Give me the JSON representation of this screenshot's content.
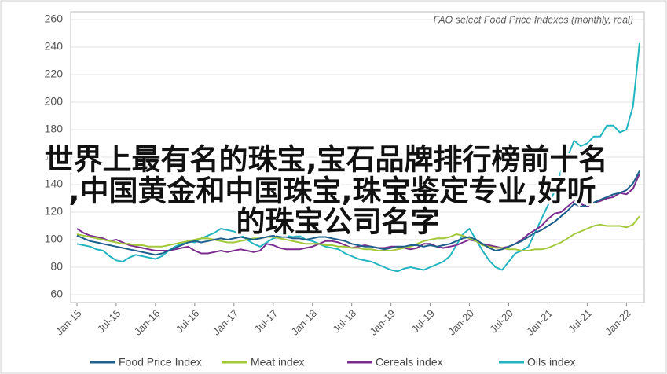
{
  "headline": [
    "世界上最有名的珠宝,宝石品牌排行榜前十名",
    ",中国黄金和中国珠宝,珠宝鉴定专业,好听",
    "的珠宝公司名字"
  ],
  "chart_data": {
    "type": "line",
    "title": "FAO select Food Price Indexes (monthly, real)",
    "categories": [
      "Jan-15",
      null,
      null,
      null,
      null,
      null,
      "Jul-15",
      null,
      null,
      null,
      null,
      null,
      "Jan-16",
      null,
      null,
      null,
      null,
      null,
      "Jul-16",
      null,
      null,
      null,
      null,
      null,
      "Jan-17",
      null,
      null,
      null,
      null,
      null,
      "Jul-17",
      null,
      null,
      null,
      null,
      null,
      "Jan-18",
      null,
      null,
      null,
      null,
      null,
      "Jul-18",
      null,
      null,
      null,
      null,
      null,
      "Jan-19",
      null,
      null,
      null,
      null,
      null,
      "Jul-19",
      null,
      null,
      null,
      null,
      null,
      "Jan-20",
      null,
      null,
      null,
      null,
      null,
      "Jul-20",
      null,
      null,
      null,
      null,
      null,
      "Jan-21",
      null,
      null,
      null,
      null,
      null,
      "Jul-21",
      null,
      null,
      null,
      null,
      null,
      "Jan-22",
      null,
      null
    ],
    "ylim": [
      60,
      260
    ],
    "yticks": [
      60,
      80,
      100,
      120,
      140,
      160,
      180,
      200,
      220,
      240,
      260
    ],
    "grid": true,
    "legend": "bottom",
    "series": [
      {
        "name": "Food Price Index",
        "color": "#1f5f8b",
        "values": [
          103,
          101,
          99,
          98,
          97,
          96,
          95,
          94,
          93,
          92,
          91,
          90,
          89,
          90,
          92,
          94,
          96,
          98,
          99,
          98,
          99,
          100,
          101,
          100,
          101,
          102,
          101,
          100,
          101,
          102,
          103,
          102,
          102,
          101,
          101,
          100,
          101,
          102,
          102,
          101,
          100,
          99,
          97,
          96,
          95,
          95,
          94,
          93,
          94,
          95,
          95,
          96,
          96,
          95,
          96,
          95,
          96,
          97,
          99,
          101,
          102,
          100,
          97,
          94,
          92,
          93,
          95,
          97,
          99,
          102,
          105,
          107,
          110,
          113,
          117,
          121,
          126,
          124,
          125,
          127,
          129,
          131,
          133,
          134,
          136,
          141,
          150
        ]
      },
      {
        "name": "Meat index",
        "color": "#a3c93a",
        "values": [
          104,
          103,
          102,
          101,
          100,
          99,
          98,
          97,
          97,
          96,
          96,
          95,
          95,
          95,
          96,
          97,
          98,
          99,
          100,
          101,
          101,
          100,
          99,
          98,
          98,
          99,
          100,
          101,
          101,
          102,
          102,
          101,
          100,
          99,
          98,
          97,
          97,
          97,
          96,
          96,
          95,
          95,
          94,
          94,
          93,
          93,
          92,
          92,
          92,
          93,
          94,
          95,
          97,
          99,
          100,
          101,
          101,
          102,
          104,
          103,
          101,
          99,
          96,
          95,
          94,
          94,
          93,
          93,
          92,
          92,
          93,
          93,
          94,
          96,
          98,
          101,
          104,
          106,
          108,
          110,
          111,
          110,
          110,
          110,
          109,
          111,
          117
        ]
      },
      {
        "name": "Cereals index",
        "color": "#7b2d8e",
        "values": [
          108,
          105,
          103,
          102,
          101,
          99,
          100,
          98,
          96,
          95,
          94,
          93,
          92,
          92,
          92,
          93,
          94,
          95,
          92,
          90,
          90,
          91,
          92,
          91,
          92,
          93,
          92,
          91,
          92,
          97,
          96,
          94,
          93,
          93,
          93,
          94,
          95,
          97,
          99,
          99,
          98,
          96,
          94,
          95,
          96,
          95,
          94,
          94,
          95,
          95,
          94,
          93,
          94,
          97,
          97,
          95,
          94,
          95,
          96,
          98,
          100,
          99,
          97,
          96,
          95,
          94,
          95,
          97,
          100,
          104,
          107,
          110,
          115,
          119,
          120,
          124,
          128,
          126,
          124,
          127,
          128,
          130,
          131,
          134,
          133,
          137,
          148
        ]
      },
      {
        "name": "Oils index",
        "color": "#22b5c0",
        "values": [
          97,
          96,
          95,
          93,
          92,
          88,
          85,
          84,
          87,
          89,
          88,
          87,
          86,
          88,
          92,
          95,
          97,
          99,
          98,
          101,
          103,
          105,
          108,
          107,
          106,
          104,
          100,
          97,
          95,
          98,
          101,
          102,
          103,
          102,
          103,
          100,
          99,
          97,
          95,
          94,
          93,
          90,
          88,
          86,
          85,
          84,
          82,
          80,
          78,
          77,
          79,
          80,
          79,
          78,
          80,
          82,
          84,
          88,
          96,
          104,
          108,
          100,
          92,
          85,
          80,
          78,
          84,
          90,
          92,
          95,
          105,
          115,
          125,
          135,
          150,
          160,
          172,
          168,
          170,
          175,
          175,
          183,
          183,
          178,
          180,
          197,
          243
        ]
      }
    ]
  }
}
